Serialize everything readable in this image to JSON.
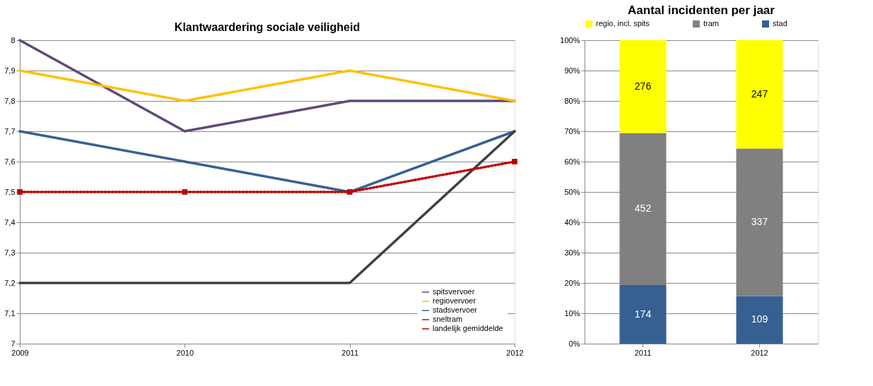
{
  "chart_data": [
    {
      "type": "line",
      "title": "Klantwaardering sociale veiligheid",
      "categories": [
        "2009",
        "2010",
        "2011",
        "2012"
      ],
      "ylim": [
        7,
        8
      ],
      "yticks": [
        7,
        {
          "value": 7.1,
          "label": "7,1"
        },
        {
          "value": 7.2,
          "label": "7,2"
        },
        {
          "value": 7.3,
          "label": "7,3"
        },
        {
          "value": 7.4,
          "label": "7,4"
        },
        {
          "value": 7.5,
          "label": "7,5"
        },
        {
          "value": 7.6,
          "label": "7,6"
        },
        {
          "value": 7.7,
          "label": "7,7"
        },
        {
          "value": 7.8,
          "label": "7,8"
        },
        {
          "value": 7.9,
          "label": "7,9"
        },
        8
      ],
      "grid": "y",
      "legend": "bottom right",
      "series": [
        {
          "name": "spitsvervoer",
          "color": "#60497a",
          "values": [
            8.0,
            7.7,
            7.8,
            7.8
          ]
        },
        {
          "name": "regiovervoer",
          "color": "#ffc000",
          "values": [
            7.9,
            7.8,
            7.9,
            7.8
          ]
        },
        {
          "name": "stadsvervoer",
          "color": "#376092",
          "values": [
            7.7,
            7.6,
            7.5,
            7.7
          ]
        },
        {
          "name": "sneltram",
          "color": "#404040",
          "values": [
            7.2,
            7.2,
            7.2,
            7.7
          ]
        },
        {
          "name": "landelijk gemiddelde",
          "color": "#c00000",
          "values": [
            7.5,
            7.5,
            7.5,
            7.6
          ],
          "marker": "square",
          "line_style": "dotted"
        }
      ]
    },
    {
      "type": "bar",
      "stacked": true,
      "title": "Aantal incidenten per jaar",
      "categories": [
        "2011",
        "2012"
      ],
      "ylim": [
        0,
        100
      ],
      "yticks": [
        {
          "value": 0,
          "label": "0%"
        },
        {
          "value": 10,
          "label": "10%"
        },
        {
          "value": 20,
          "label": "20%"
        },
        {
          "value": 30,
          "label": "30%"
        },
        {
          "value": 40,
          "label": "40%"
        },
        {
          "value": 50,
          "label": "50%"
        },
        {
          "value": 60,
          "label": "60%"
        },
        {
          "value": 70,
          "label": "70%"
        },
        {
          "value": 80,
          "label": "80%"
        },
        {
          "value": 90,
          "label": "90%"
        },
        {
          "value": 100,
          "label": "100%"
        }
      ],
      "grid": "y",
      "legend": "top",
      "series": [
        {
          "name": "stad",
          "color": "#376092",
          "values": [
            19.3,
            15.7
          ]
        },
        {
          "name": "tram",
          "color": "#808080",
          "values": [
            50.1,
            48.6
          ]
        },
        {
          "name": "regio, incl. spits",
          "color": "#ffff00",
          "values": [
            30.6,
            35.7
          ]
        }
      ],
      "annotations": [
        "174",
        "109",
        "452",
        "337",
        "276",
        "247"
      ]
    }
  ]
}
